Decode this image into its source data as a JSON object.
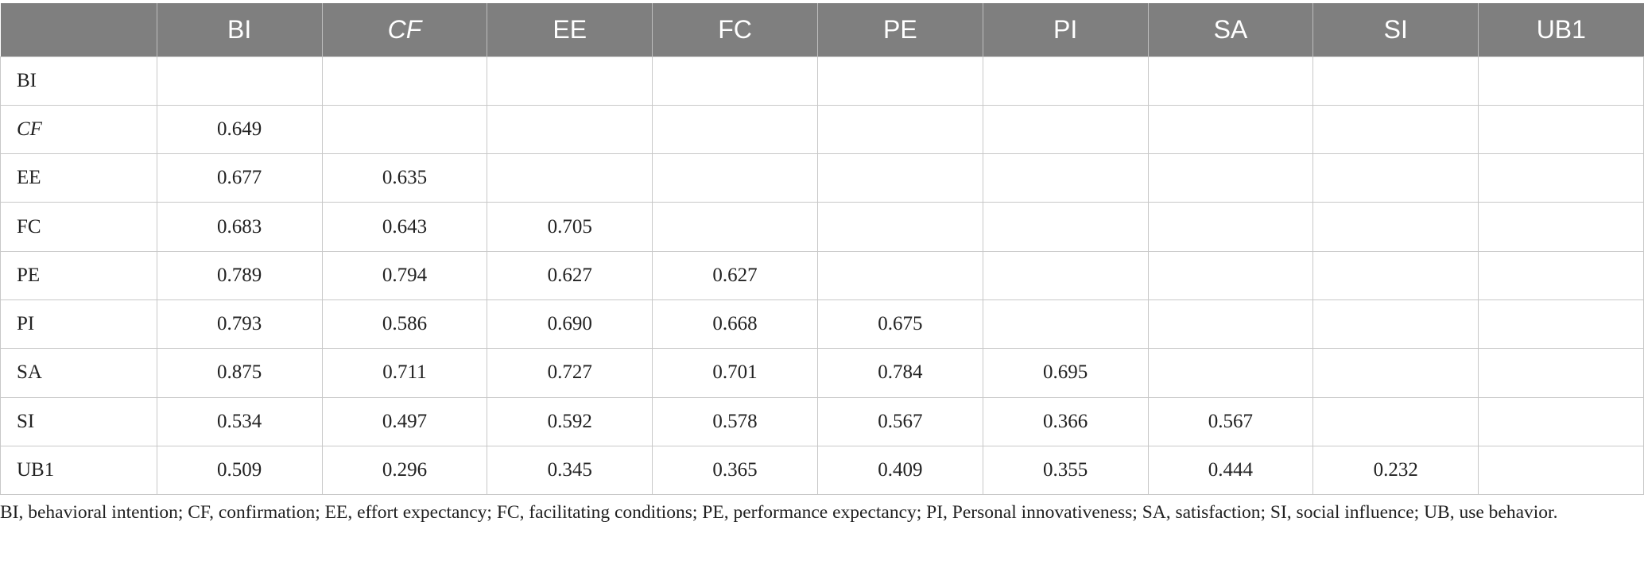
{
  "table": {
    "corner": "",
    "columns": [
      "BI",
      "CF",
      "EE",
      "FC",
      "PE",
      "PI",
      "SA",
      "SI",
      "UB1"
    ],
    "rows": [
      {
        "label": "BI",
        "values": [
          "",
          "",
          "",
          "",
          "",
          "",
          "",
          "",
          ""
        ]
      },
      {
        "label": "CF",
        "values": [
          "0.649",
          "",
          "",
          "",
          "",
          "",
          "",
          "",
          ""
        ]
      },
      {
        "label": "EE",
        "values": [
          "0.677",
          "0.635",
          "",
          "",
          "",
          "",
          "",
          "",
          ""
        ]
      },
      {
        "label": "FC",
        "values": [
          "0.683",
          "0.643",
          "0.705",
          "",
          "",
          "",
          "",
          "",
          ""
        ]
      },
      {
        "label": "PE",
        "values": [
          "0.789",
          "0.794",
          "0.627",
          "0.627",
          "",
          "",
          "",
          "",
          ""
        ]
      },
      {
        "label": "PI",
        "values": [
          "0.793",
          "0.586",
          "0.690",
          "0.668",
          "0.675",
          "",
          "",
          "",
          ""
        ]
      },
      {
        "label": "SA",
        "values": [
          "0.875",
          "0.711",
          "0.727",
          "0.701",
          "0.784",
          "0.695",
          "",
          "",
          ""
        ]
      },
      {
        "label": "SI",
        "values": [
          "0.534",
          "0.497",
          "0.592",
          "0.578",
          "0.567",
          "0.366",
          "0.567",
          "",
          ""
        ]
      },
      {
        "label": "UB1",
        "values": [
          "0.509",
          "0.296",
          "0.345",
          "0.365",
          "0.409",
          "0.355",
          "0.444",
          "0.232",
          ""
        ]
      }
    ]
  },
  "footnote": "BI, behavioral intention; CF, confirmation; EE, effort expectancy; FC, facilitating conditions; PE, performance expectancy; PI, Personal innovativeness; SA, satisfaction; SI, social influence; UB, use behavior."
}
